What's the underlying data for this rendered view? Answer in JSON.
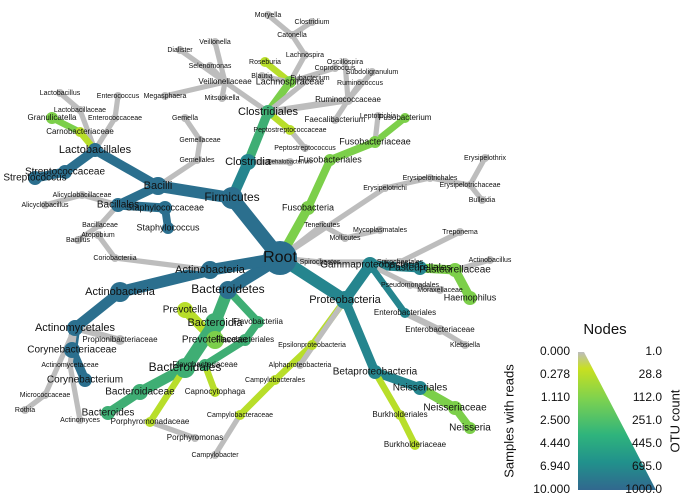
{
  "nodes": [
    "Root",
    "Firmicutes",
    "Bacilli",
    "Lactobacillales",
    "Streptococcaceae",
    "Streptococcus",
    "Lactobacillaceae",
    "Lactobacillus",
    "Carnobacteriaceae",
    "Granulicatella",
    "Enterococcaceae",
    "Enterococcus",
    "Gemellales",
    "Gemellaceae",
    "Gemella",
    "Bacillales",
    "Staphylococcaceae",
    "Staphylococcus",
    "Bacillaceae",
    "Bacillus",
    "Alicyclobacillaceae",
    "Alicyclobacillus",
    "Clostridia",
    "Clostridiales",
    "Lachnospiraceae",
    "Roseburia",
    "Blautia",
    "Lachnospira",
    "Catonella",
    "Moryella",
    "Clostridium",
    "Coprococcus",
    "Veillonellaceae",
    "Veillonella",
    "Dialister",
    "Selenomonas",
    "Megasphaera",
    "Mitsuokella",
    "Ruminococcaceae",
    "Ruminococcus",
    "Oscillospira",
    "Subdoligranulum",
    "Faecalibacterium",
    "Eubacterium",
    "Peptostreptococcaceae",
    "Peptostreptococcus",
    "Dehalobacterium",
    "Fusobacteria",
    "Fusobacteriales",
    "Fusobacteriaceae",
    "Fusobacterium",
    "Leptotrichia",
    "Erysipelotrichi",
    "Erysipelotrichales",
    "Erysipelotrichaceae",
    "Erysipelothrix",
    "Bulleidia",
    "Tenericutes",
    "Mollicutes",
    "Mycoplasmatales",
    "Spirochaetes",
    "Spirochaetales",
    "Treponema",
    "Proteobacteria",
    "Gammaproteobacteria",
    "Pasteurellales",
    "Pasteurellaceae",
    "Haemophilus",
    "Actinobacillus",
    "Pseudomonadales",
    "Moraxellaceae",
    "Enterobacteriales",
    "Enterobacteriaceae",
    "Klebsiella",
    "Betaproteobacteria",
    "Neisseriales",
    "Neisseriaceae",
    "Neisseria",
    "Burkholderiales",
    "Burkholderiaceae",
    "Epsilonproteobacteria",
    "Campylobacterales",
    "Campylobacteraceae",
    "Campylobacter",
    "Alphaproteobacteria",
    "Bacteroidetes",
    "Bacteroidia",
    "Prevotellaceae",
    "Prevotella",
    "Bacteroidales",
    "Bacteroidaceae",
    "Bacteroides",
    "Porphyromonadaceae",
    "Porphyromonas",
    "Flavobacteriia",
    "Flavobacteriales",
    "Flavobacteriaceae",
    "Capnocytophaga",
    "Actinobacteria",
    "Actinobacteria",
    "Actinomycetales",
    "Corynebacteriaceae",
    "Corynebacterium",
    "Propionibacteriaceae",
    "Micrococcaceae",
    "Rothia",
    "Actinomycetaceae",
    "Actinomyces",
    "Coriobacteriia",
    "Atopobium"
  ],
  "legend": {
    "title": "Nodes",
    "left_label": "Samples with reads",
    "right_label": "OTU count",
    "left_ticks": [
      "0.000",
      "0.278",
      "1.110",
      "2.500",
      "4.440",
      "6.940",
      "10.000"
    ],
    "right_ticks": [
      "1.0",
      "28.8",
      "112.0",
      "251.0",
      "445.0",
      "695.0",
      "1000.0"
    ]
  }
}
